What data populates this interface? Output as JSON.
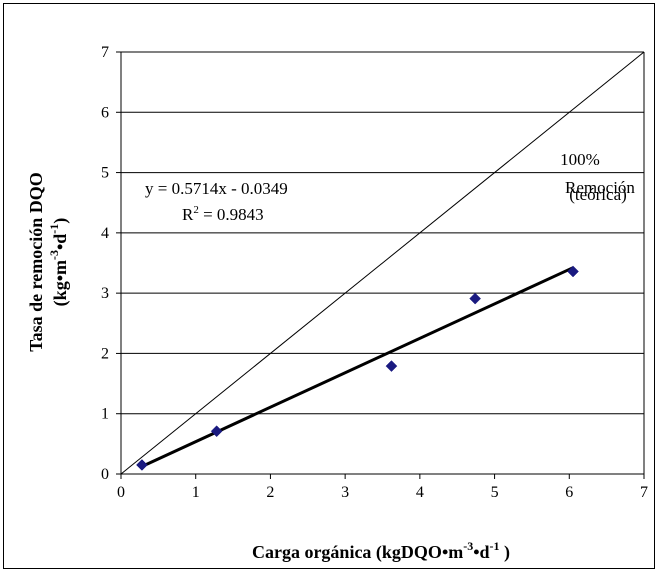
{
  "chart_data": {
    "type": "scatter",
    "xlabel_parts": [
      "Carga orgánica (kgDQO•m",
      "-3",
      "•d",
      "-1",
      " )"
    ],
    "ylabel_line1": "Tasa de remoción DQO",
    "ylabel_line2_parts": [
      "(kg•m",
      "-3",
      "•d",
      "-1",
      ")"
    ],
    "xlim": [
      0,
      7
    ],
    "ylim": [
      0,
      7
    ],
    "x_ticks": [
      0,
      1,
      2,
      3,
      4,
      5,
      6,
      7
    ],
    "y_ticks": [
      0,
      1,
      2,
      3,
      4,
      5,
      6,
      7
    ],
    "grid": "horizontal",
    "series": [
      {
        "type": "scatter",
        "marker": "diamond",
        "color": "#1a1a80",
        "x": [
          0.28,
          1.28,
          3.62,
          4.74,
          6.05
        ],
        "y": [
          0.15,
          0.71,
          1.79,
          2.91,
          3.36
        ]
      }
    ],
    "trendline": {
      "slope": 0.5714,
      "intercept": -0.0349,
      "x_range": [
        0.28,
        6.05
      ],
      "equation": "y = 0.5714x - 0.0349",
      "r2_prefix": "R",
      "r2_exp": "2",
      "r2_value": " = 0.9843"
    },
    "reference_line": {
      "x_range": [
        0,
        7
      ],
      "y_range": [
        0,
        7
      ],
      "label_lines": [
        "100%",
        "Remoción",
        "(teórica)"
      ]
    }
  }
}
